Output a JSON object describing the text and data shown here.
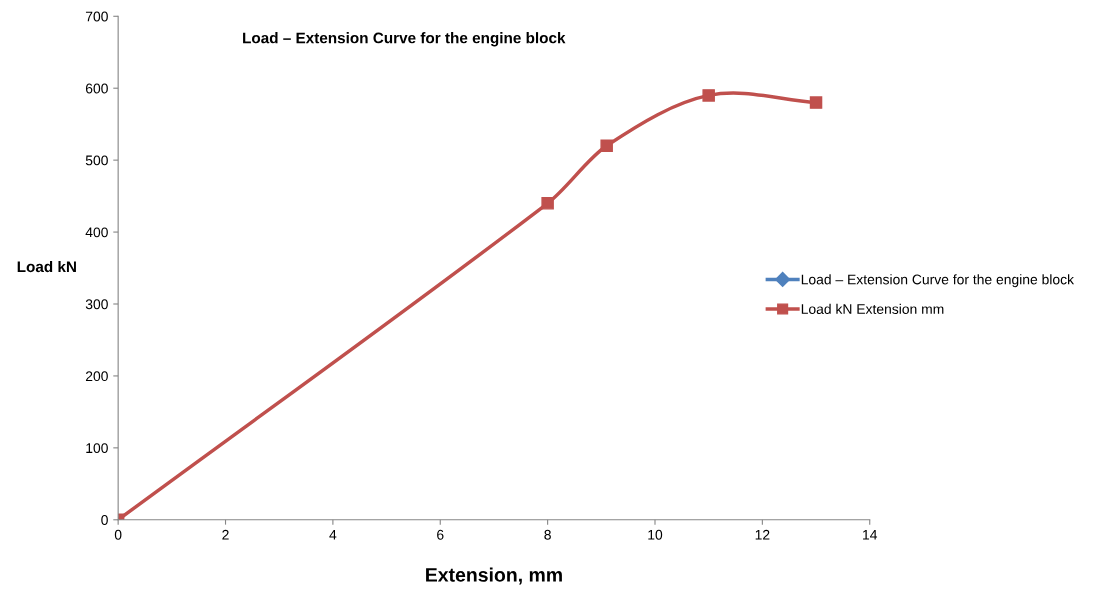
{
  "chart_data": {
    "type": "line",
    "title": "Load – Extension Curve for the engine block",
    "xlabel": "Extension, mm",
    "ylabel": "Load kN",
    "x": [
      0,
      8,
      9.1,
      11,
      13
    ],
    "series": [
      {
        "name": "Load – Extension Curve for the engine block",
        "color": "#4f81bd",
        "marker": "diamond",
        "values": [
          null,
          null,
          null,
          null,
          null
        ]
      },
      {
        "name": "Load kN Extension mm",
        "color": "#c0504d",
        "marker": "square",
        "values": [
          0,
          440,
          520,
          590,
          580
        ]
      }
    ],
    "xlim": [
      0,
      14
    ],
    "xticks": [
      0,
      2,
      4,
      6,
      8,
      10,
      12,
      14
    ],
    "ylim": [
      0,
      700
    ],
    "yticks": [
      0,
      100,
      200,
      300,
      400,
      500,
      600,
      700
    ],
    "grid": false,
    "legend": "right"
  }
}
